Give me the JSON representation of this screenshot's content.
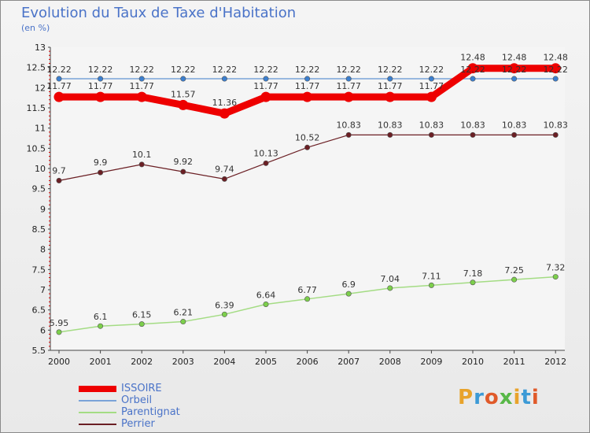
{
  "header": {
    "title": "Evolution du Taux de Taxe d'Habitation",
    "unit": "(en %)"
  },
  "logo": {
    "text": "Proxiti",
    "colors": [
      "#e8a32b",
      "#3c9ad6",
      "#e05a2a",
      "#58b848",
      "#e8a32b",
      "#3c9ad6",
      "#e05a2a"
    ]
  },
  "chart_data": {
    "type": "line",
    "title": "Evolution du Taux de Taxe d'Habitation",
    "ylabel": "(en %)",
    "xlabel": "",
    "ylim": [
      5.5,
      13
    ],
    "ystep": 0.5,
    "grid": false,
    "legend_position": "bottom-left",
    "categories": [
      "2000",
      "2001",
      "2002",
      "2003",
      "2004",
      "2005",
      "2006",
      "2007",
      "2008",
      "2009",
      "2010",
      "2011",
      "2012"
    ],
    "y_ticks": [
      "5.5",
      "6",
      "6.5",
      "7",
      "7.5",
      "8",
      "8.5",
      "9",
      "9.5",
      "10",
      "10.5",
      "11",
      "11.5",
      "12",
      "12.5",
      "13"
    ],
    "series": [
      {
        "name": "Orbeil",
        "color": "#7aa3d8",
        "point_color": "#3b7fcf",
        "width": 1.5,
        "values": [
          12.22,
          12.22,
          12.22,
          12.22,
          12.22,
          12.22,
          12.22,
          12.22,
          12.22,
          12.22,
          12.22,
          12.22,
          12.22
        ],
        "labels": [
          "12.22",
          "12.22",
          "12.22",
          "12.22",
          "12.22",
          "12.22",
          "12.22",
          "12.22",
          "12.22",
          "12.22",
          "12.22",
          "12.22",
          "12.22"
        ]
      },
      {
        "name": "Perrier",
        "color": "#6b1f24",
        "point_color": "#6b1f24",
        "width": 1.2,
        "values": [
          9.7,
          9.9,
          10.1,
          9.92,
          9.74,
          10.13,
          10.52,
          10.83,
          10.83,
          10.83,
          10.83,
          10.83,
          10.83
        ],
        "labels": [
          "9.7",
          "9.9",
          "10.1",
          "9.92",
          "9.74",
          "10.13",
          "10.52",
          "10.83",
          "10.83",
          "10.83",
          "10.83",
          "10.83",
          "10.83"
        ]
      },
      {
        "name": "Parentignat",
        "color": "#a4dc84",
        "point_color": "#7ccf4b",
        "width": 1.5,
        "values": [
          5.95,
          6.1,
          6.15,
          6.21,
          6.39,
          6.64,
          6.77,
          6.9,
          7.04,
          7.11,
          7.18,
          7.25,
          7.32
        ],
        "labels": [
          "5.95",
          "6.1",
          "6.15",
          "6.21",
          "6.39",
          "6.64",
          "6.77",
          "6.9",
          "7.04",
          "7.11",
          "7.18",
          "7.25",
          "7.32"
        ]
      },
      {
        "name": "ISSOIRE",
        "color": "#ee0000",
        "point_color": "#ee0000",
        "width": 9,
        "values": [
          11.77,
          11.77,
          11.77,
          11.57,
          11.36,
          11.77,
          11.77,
          11.77,
          11.77,
          11.77,
          12.48,
          12.48,
          12.48
        ],
        "labels": [
          "11.77",
          "11.77",
          "11.77",
          "11.57",
          "11.36",
          "11.77",
          "11.77",
          "11.77",
          "11.77",
          "11.77",
          "12.48",
          "12.48",
          "12.48"
        ]
      }
    ],
    "legend_order": [
      "ISSOIRE",
      "Orbeil",
      "Parentignat",
      "Perrier"
    ]
  }
}
